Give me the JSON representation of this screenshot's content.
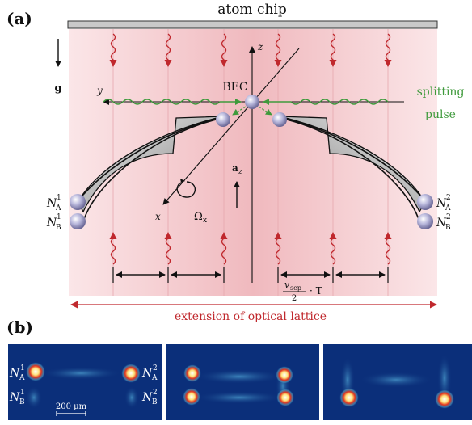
{
  "panel_a": {
    "label": "(a)",
    "chip_label": "atom chip",
    "gravity_label": "g",
    "axis_z": "z",
    "axis_y": "y",
    "axis_x": "x",
    "bec_label": "BEC",
    "splitting_line1": "splitting",
    "splitting_line2": "pulse",
    "accel_label": "a",
    "accel_sub": "z",
    "rotation_label": "Ω",
    "rotation_sub": "x",
    "left_top": {
      "base": "N",
      "sub": "A",
      "sup": "1"
    },
    "left_bottom": {
      "base": "N",
      "sub": "B",
      "sup": "1"
    },
    "right_top": {
      "base": "N",
      "sub": "A",
      "sup": "2"
    },
    "right_bottom": {
      "base": "N",
      "sub": "B",
      "sup": "2"
    },
    "sep_numerator": "v",
    "sep_num_sub": "sep",
    "sep_denominator": "2",
    "sep_times": "· T",
    "lattice_label": "extension of optical lattice",
    "colors": {
      "lattice": "#f2c4c8",
      "red": "#c0282d",
      "green": "#3f9a3c",
      "chip": "#c9c9c9"
    }
  },
  "panel_b": {
    "label": "(b)",
    "na1": {
      "base": "N",
      "sub": "A",
      "sup": "1"
    },
    "nb1": {
      "base": "N",
      "sub": "B",
      "sup": "1"
    },
    "na2": {
      "base": "N",
      "sub": "A",
      "sup": "2"
    },
    "nb2": {
      "base": "N",
      "sub": "B",
      "sup": "2"
    },
    "scale_bar": "200 µm",
    "colors": {
      "background": "#0b2f7a",
      "spot": "#ffffff"
    }
  }
}
